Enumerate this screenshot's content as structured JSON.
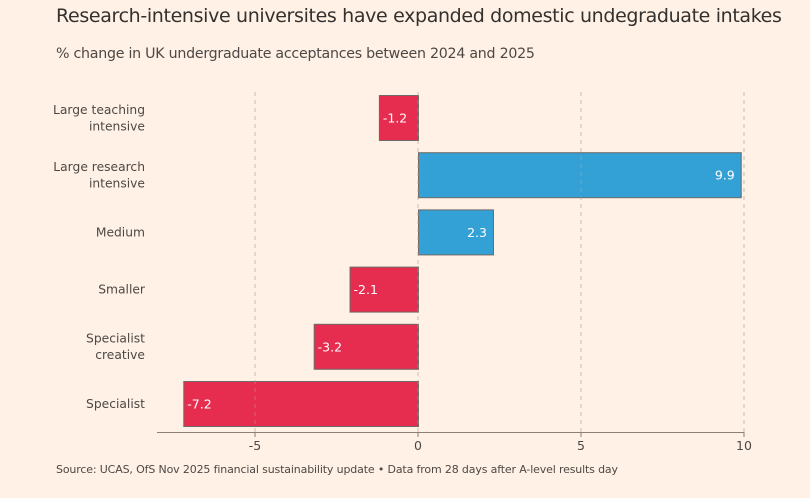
{
  "chart_data": {
    "type": "bar",
    "orientation": "horizontal",
    "title": "Research-intensive universites have expanded domestic undegraduate intakes",
    "subtitle": "% change in UK undergraduate acceptances between 2024 and 2025",
    "xlabel": "",
    "ylabel": "",
    "xlim": [
      -8.2,
      10
    ],
    "grid": true,
    "legend": "none",
    "x_ticks": [
      -5,
      0,
      5,
      10
    ],
    "x_tick_labels": [
      "-5",
      "0",
      "5",
      "10"
    ],
    "categories": [
      [
        "Large teaching",
        "intensive"
      ],
      [
        "Large research",
        "intensive"
      ],
      [
        "Medium"
      ],
      [
        "Smaller"
      ],
      [
        "Specialist",
        "creative"
      ],
      [
        "Specialist"
      ]
    ],
    "values": [
      -1.2,
      9.9,
      2.3,
      -2.1,
      -3.2,
      -7.2
    ],
    "data_labels": [
      "-1.2",
      "9.9",
      "2.3",
      "-2.1",
      "-3.2",
      "-7.2"
    ],
    "colors": {
      "positive": "#33a1d5",
      "negative": "#e62d50",
      "bar_border": "#6e6a66",
      "grid": "#c9bfb6",
      "axis": "#8a8078"
    },
    "source": "Source: UCAS, OfS Nov 2025 financial sustainability update • Data from 28 days after A-level results day"
  }
}
